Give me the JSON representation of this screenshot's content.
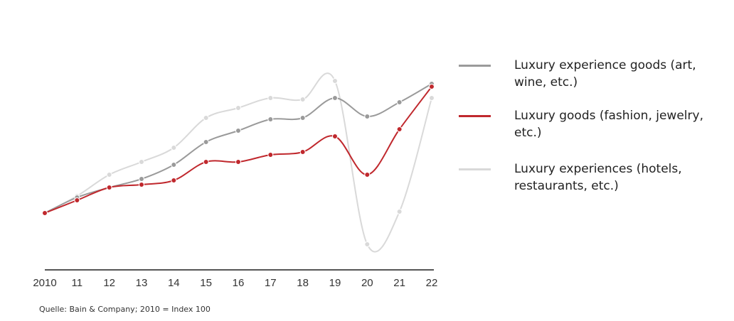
{
  "chart_data": {
    "type": "line",
    "title": "",
    "xlabel": "",
    "ylabel": "",
    "categories": [
      "2010",
      "11",
      "12",
      "13",
      "14",
      "15",
      "16",
      "17",
      "18",
      "19",
      "20",
      "21",
      "22"
    ],
    "ylim": [
      60,
      205
    ],
    "grid": false,
    "legend_placement": "right",
    "series": [
      {
        "name": "Luxury experience goods (art, wine, etc.)",
        "color": "#9a9a9a",
        "values": [
          100,
          111,
          118,
          124,
          134,
          150,
          158,
          166,
          167,
          181,
          168,
          178,
          191
        ]
      },
      {
        "name": "Luxury goods (fashion, jewelry, etc.)",
        "color": "#c0282d",
        "values": [
          100,
          109,
          118,
          120,
          123,
          136,
          136,
          141,
          143,
          154,
          127,
          159,
          189
        ]
      },
      {
        "name": "Luxury experiences (hotels, restaurants, etc.)",
        "color": "#d9d9d9",
        "values": [
          100,
          112,
          127,
          136,
          146,
          167,
          174,
          181,
          180,
          193,
          78,
          101,
          181
        ]
      }
    ]
  },
  "source": "Quelle: Bain & Company; 2010 = Index 100"
}
